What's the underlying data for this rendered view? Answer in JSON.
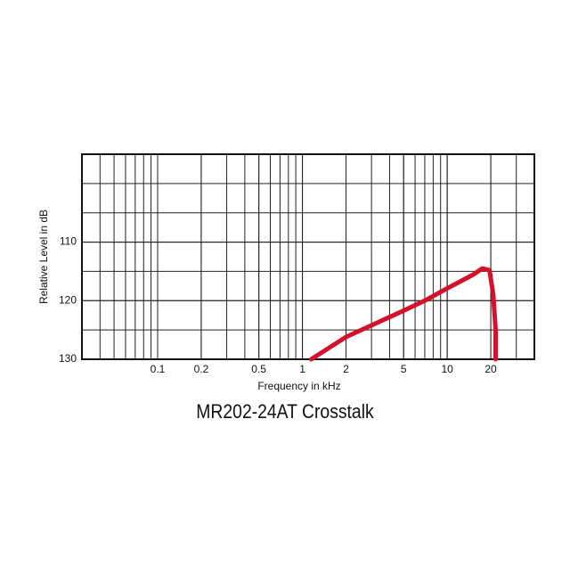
{
  "chart_data": {
    "type": "line",
    "title": "MR202-24AT Crosstalk",
    "x_label": "Frequency in kHz",
    "y_label": "Relative Level in dB",
    "x_scale": "log",
    "xlim": [
      0.03,
      40
    ],
    "xticks": [
      0.1,
      0.2,
      0.5,
      1,
      2,
      5,
      10,
      20
    ],
    "ylim": [
      130,
      95
    ],
    "yticks": [
      110,
      120,
      130
    ],
    "ygrid": [
      95,
      100,
      105,
      110,
      115,
      120,
      125,
      130
    ],
    "grid": true,
    "series": [
      {
        "color": "#d4102a",
        "x": [
          1.15,
          2,
          5,
          7,
          10,
          15,
          17.5,
          19.6,
          20.8,
          21.6,
          21.6
        ],
        "values": [
          130,
          126.2,
          121.7,
          120,
          117.9,
          115.6,
          114.5,
          114.8,
          119,
          125,
          130
        ]
      }
    ]
  }
}
